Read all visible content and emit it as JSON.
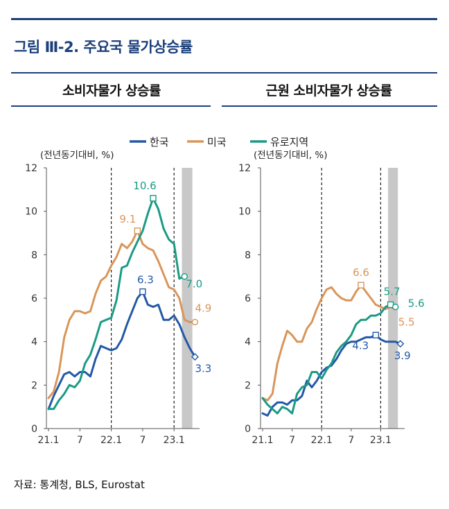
{
  "figure_title": "그림 Ⅲ-2. 주요국 물가상승률",
  "source": "자료: 통계청, BLS, Eurostat",
  "colors": {
    "korea": "#2358a6",
    "us": "#d9955a",
    "euro": "#1a9a84",
    "rule": "#1b3f7a",
    "shade": "#c8c8c8"
  },
  "legend": [
    {
      "key": "korea",
      "label": "한국"
    },
    {
      "key": "us",
      "label": "미국"
    },
    {
      "key": "euro",
      "label": "유로지역"
    }
  ],
  "chart_data": [
    {
      "type": "line",
      "title": "소비자물가 상승률",
      "unit_note": "(전년동기대비, %)",
      "ylim": [
        0,
        12
      ],
      "yticks": [
        "0",
        "2",
        "4",
        "6",
        "8",
        "10",
        "12"
      ],
      "xticks": [
        {
          "i": 0,
          "label": "21.1"
        },
        {
          "i": 6,
          "label": "7"
        },
        {
          "i": 12,
          "label": "22.1"
        },
        {
          "i": 18,
          "label": "7"
        },
        {
          "i": 24,
          "label": "23.1"
        }
      ],
      "dashed_at": [
        12,
        24
      ],
      "shaded_from": 25.5,
      "shaded_to": 27.5,
      "series": [
        {
          "key": "korea",
          "name": "한국",
          "values": [
            0.9,
            1.5,
            2.0,
            2.5,
            2.6,
            2.4,
            2.6,
            2.6,
            2.4,
            3.2,
            3.8,
            3.7,
            3.6,
            3.7,
            4.1,
            4.8,
            5.4,
            6.0,
            6.3,
            5.7,
            5.6,
            5.7,
            5.0,
            5.0,
            5.2,
            4.8,
            4.2,
            3.7,
            3.3
          ]
        },
        {
          "key": "us",
          "name": "미국",
          "values": [
            1.4,
            1.7,
            2.6,
            4.2,
            5.0,
            5.4,
            5.4,
            5.3,
            5.4,
            6.2,
            6.8,
            7.0,
            7.5,
            7.9,
            8.5,
            8.3,
            8.6,
            9.1,
            8.5,
            8.3,
            8.2,
            7.7,
            7.1,
            6.5,
            6.4,
            6.0,
            5.0,
            4.9,
            4.9
          ]
        },
        {
          "key": "euro",
          "name": "유로지역",
          "values": [
            0.9,
            0.9,
            1.3,
            1.6,
            2.0,
            1.9,
            2.2,
            3.0,
            3.4,
            4.1,
            4.9,
            5.0,
            5.1,
            5.9,
            7.4,
            7.5,
            8.1,
            8.6,
            9.1,
            9.9,
            10.6,
            10.1,
            9.2,
            8.7,
            8.5,
            6.9,
            7.0
          ]
        }
      ],
      "annotations": [
        {
          "key": "euro",
          "i": 20,
          "text": "10.6",
          "dx": -12,
          "dy": -13,
          "marker": "square"
        },
        {
          "key": "us",
          "i": 17,
          "text": "9.1",
          "dx": -14,
          "dy": -12,
          "marker": "square"
        },
        {
          "key": "korea",
          "i": 18,
          "text": "6.3",
          "dx": 4,
          "dy": -12,
          "marker": "square"
        },
        {
          "key": "euro",
          "i": 26,
          "text": "7.0",
          "dx": 14,
          "dy": 16,
          "marker": "circle"
        },
        {
          "key": "us",
          "i": 28,
          "text": "4.9",
          "dx": 12,
          "dy": -15,
          "marker": "circle"
        },
        {
          "key": "korea",
          "i": 28,
          "text": "3.3",
          "dx": 12,
          "dy": 22,
          "marker": "diamond"
        }
      ]
    },
    {
      "type": "line",
      "title": "근원 소비자물가 상승률",
      "unit_note": "(전년동기대비, %)",
      "ylim": [
        0,
        12
      ],
      "yticks": [
        "0",
        "2",
        "4",
        "6",
        "8",
        "10",
        "12"
      ],
      "xticks": [
        {
          "i": 0,
          "label": "21.1"
        },
        {
          "i": 6,
          "label": "7"
        },
        {
          "i": 12,
          "label": "22.1"
        },
        {
          "i": 18,
          "label": "7"
        },
        {
          "i": 24,
          "label": "23.1"
        }
      ],
      "dashed_at": [
        12,
        24
      ],
      "shaded_from": 25.5,
      "shaded_to": 27.5,
      "series": [
        {
          "key": "korea",
          "name": "한국",
          "values": [
            0.7,
            0.6,
            1.0,
            1.2,
            1.2,
            1.1,
            1.3,
            1.3,
            1.5,
            2.2,
            1.9,
            2.2,
            2.6,
            2.8,
            2.9,
            3.2,
            3.6,
            3.9,
            4.0,
            4.0,
            4.1,
            4.2,
            4.2,
            4.3,
            4.1,
            4.0,
            4.0,
            4.0,
            3.9
          ]
        },
        {
          "key": "us",
          "name": "미국",
          "values": [
            1.4,
            1.3,
            1.6,
            3.0,
            3.8,
            4.5,
            4.3,
            4.0,
            4.0,
            4.6,
            4.9,
            5.5,
            6.0,
            6.4,
            6.5,
            6.2,
            6.0,
            5.9,
            5.9,
            6.3,
            6.6,
            6.3,
            6.0,
            5.7,
            5.6,
            5.5,
            5.6,
            5.5
          ]
        },
        {
          "key": "euro",
          "name": "유로지역",
          "values": [
            1.4,
            1.1,
            0.9,
            0.7,
            1.0,
            0.9,
            0.7,
            1.6,
            1.9,
            2.0,
            2.6,
            2.6,
            2.3,
            2.7,
            3.0,
            3.5,
            3.8,
            4.0,
            4.3,
            4.8,
            5.0,
            5.0,
            5.2,
            5.2,
            5.3,
            5.6,
            5.7,
            5.6
          ]
        }
      ],
      "annotations": [
        {
          "key": "us",
          "i": 20,
          "text": "6.6",
          "dx": 0,
          "dy": -13,
          "marker": "square"
        },
        {
          "key": "korea",
          "i": 23,
          "text": "4.3",
          "dx": -22,
          "dy": 20,
          "marker": "square"
        },
        {
          "key": "euro",
          "i": 26,
          "text": "5.7",
          "dx": 2,
          "dy": -14,
          "marker": "square"
        },
        {
          "key": "euro",
          "i": 27,
          "text": "5.6",
          "dx": 30,
          "dy": 0,
          "marker": "circle"
        },
        {
          "key": "us",
          "i": 27,
          "text": "5.5",
          "dx": 16,
          "dy": 24,
          "marker": "none"
        },
        {
          "key": "korea",
          "i": 28,
          "text": "3.9",
          "dx": 3,
          "dy": 22,
          "marker": "diamond"
        }
      ]
    }
  ]
}
